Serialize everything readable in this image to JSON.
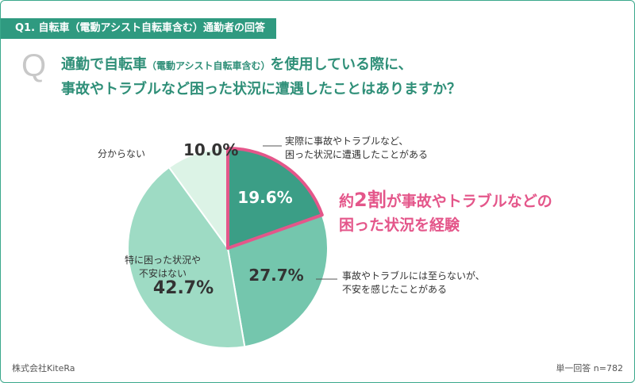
{
  "header": {
    "question_tag": "Q1. 自転車（電動アシスト自転車含む）通勤者の回答",
    "q_mark": "Q",
    "question_line1_pre": "通勤で自転車",
    "question_line1_small": "（電動アシスト自転車含む）",
    "question_line1_post": "を使用している際に、",
    "question_line2": "事故やトラブルなど困った状況に遭遇したことはありますか？"
  },
  "highlight": {
    "pre": "約",
    "big": "2割",
    "post1": "が事故やトラブルなどの",
    "line2": "困った状況を経験"
  },
  "footer": {
    "source": "株式会社KiteRa",
    "note": "単一回答 n=782"
  },
  "chart_data": {
    "type": "pie",
    "start_angle_deg": 0,
    "direction": "clockwise",
    "slices": [
      {
        "label": "実際に事故やトラブルなど、困った状況に遭遇したことがある",
        "label_lines": [
          "実際に事故やトラブルなど、",
          "困った状況に遭遇したことがある"
        ],
        "value": 19.6,
        "display": "19.6%",
        "color": "#3b9e86",
        "emphasized": true
      },
      {
        "label": "事故やトラブルには至らないが、不安を感じたことがある",
        "label_lines": [
          "事故やトラブルには至らないが、",
          "不安を感じたことがある"
        ],
        "value": 27.7,
        "display": "27.7%",
        "color": "#74c6ad"
      },
      {
        "label": "特に困った状況や不安はない",
        "label_lines": [
          "特に困った状況や",
          "不安はない"
        ],
        "value": 42.7,
        "display": "42.7%",
        "color": "#9edbc4"
      },
      {
        "label": "分からない",
        "label_lines": [
          "分からない"
        ],
        "value": 10.0,
        "display": "10.0%",
        "color": "#dcf3e6"
      }
    ],
    "emphasis_color": "#e4568a"
  }
}
